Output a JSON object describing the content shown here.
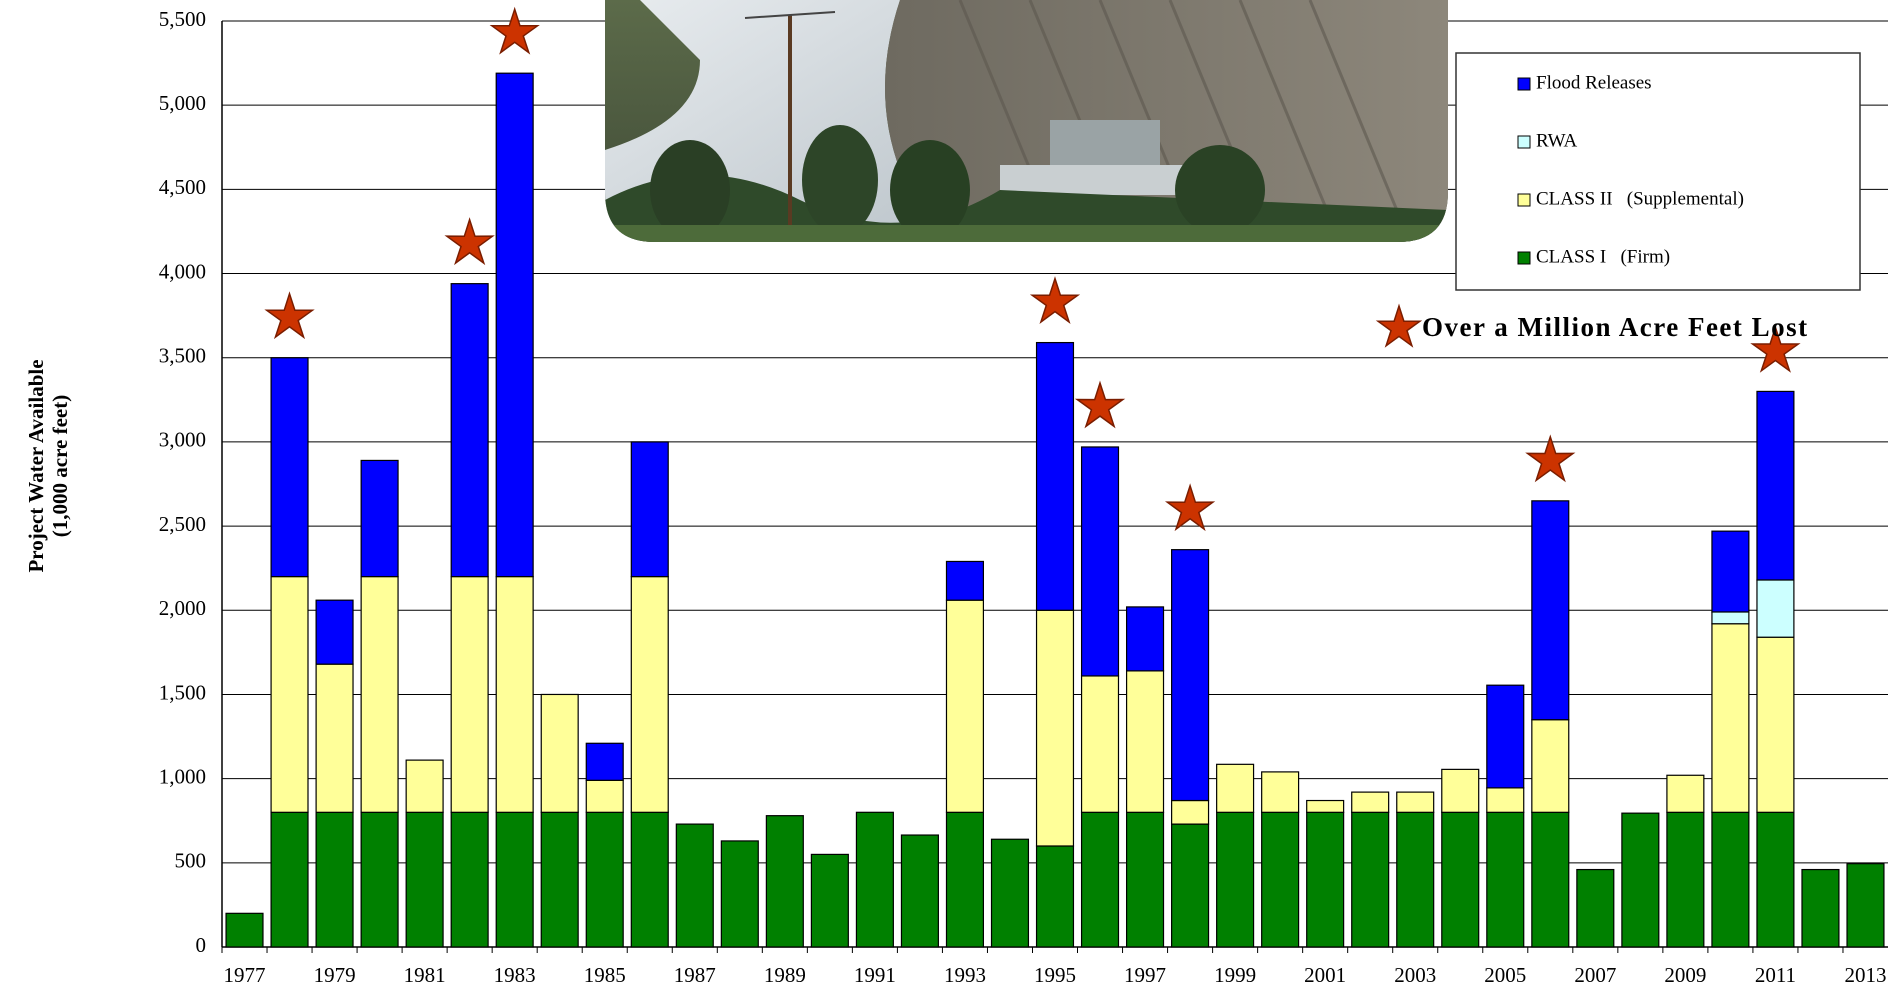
{
  "chart_data": {
    "type": "stacked_bar",
    "y_label": "Project Water Available",
    "y_label_2": "(1,000 acre feet)",
    "categories": [
      "1977",
      null,
      "1979",
      null,
      "1981",
      null,
      "1983",
      null,
      "1985",
      null,
      "1987",
      null,
      "1989",
      null,
      "1991",
      null,
      "1993",
      null,
      "1995",
      null,
      "1997",
      null,
      "1999",
      null,
      "2001",
      null,
      "2003",
      null,
      "2005",
      null,
      "2007",
      null,
      "2009",
      null,
      "2011",
      null,
      "2013"
    ],
    "series": [
      {
        "name": "CLASS I   (Firm)",
        "color": "#008000",
        "values": [
          200,
          800,
          800,
          800,
          800,
          800,
          800,
          800,
          800,
          800,
          730,
          630,
          780,
          550,
          800,
          665,
          800,
          640,
          600,
          800,
          800,
          730,
          800,
          800,
          800,
          800,
          800,
          800,
          800,
          800,
          460,
          795,
          800,
          800,
          800,
          460,
          495
        ]
      },
      {
        "name": "CLASS II   (Supplemental)",
        "color": "#ffff99",
        "values": [
          0,
          1400,
          880,
          1400,
          310,
          1400,
          1400,
          700,
          190,
          1400,
          0,
          0,
          0,
          0,
          0,
          0,
          1260,
          0,
          1400,
          810,
          840,
          140,
          285,
          240,
          70,
          120,
          120,
          255,
          145,
          550,
          0,
          0,
          220,
          1120,
          1040,
          0,
          0
        ]
      },
      {
        "name": "RWA",
        "color": "#ccffff",
        "values": [
          0,
          0,
          0,
          0,
          0,
          0,
          0,
          0,
          0,
          0,
          0,
          0,
          0,
          0,
          0,
          0,
          0,
          0,
          0,
          0,
          0,
          0,
          0,
          0,
          0,
          0,
          0,
          0,
          0,
          0,
          0,
          0,
          0,
          70,
          340,
          0,
          0
        ]
      },
      {
        "name": "Flood Releases",
        "color": "#0000ff",
        "values": [
          0,
          1300,
          380,
          690,
          0,
          1740,
          2990,
          0,
          220,
          800,
          0,
          0,
          0,
          0,
          0,
          0,
          230,
          0,
          1590,
          1360,
          380,
          1490,
          0,
          0,
          0,
          0,
          0,
          0,
          610,
          1300,
          0,
          0,
          0,
          480,
          1120,
          0,
          0
        ]
      }
    ],
    "flagged_years": [
      "1978",
      "1982",
      "1983",
      "1995",
      "1996",
      "1998",
      "2006",
      "2011"
    ],
    "flag_label": "Over a Million Acre Feet Lost",
    "flag_color": "#cc3300",
    "ylim": [
      0,
      5500
    ],
    "yticks": [
      0,
      {
        "value": 500,
        "label": "500"
      },
      {
        "value": 1000,
        "label": "1,000"
      },
      {
        "value": 1500,
        "label": "1,500"
      },
      {
        "value": 2000,
        "label": "2,000"
      },
      {
        "value": 2500,
        "label": "2,500"
      },
      {
        "value": 3000,
        "label": "3,000"
      },
      {
        "value": 3500,
        "label": "3,500"
      },
      {
        "value": 4000,
        "label": "4,000"
      },
      {
        "value": 4500,
        "label": "4,500"
      },
      {
        "value": 5000,
        "label": "5,000"
      },
      {
        "value": 5500,
        "label": "5,500"
      }
    ],
    "grid": true
  }
}
